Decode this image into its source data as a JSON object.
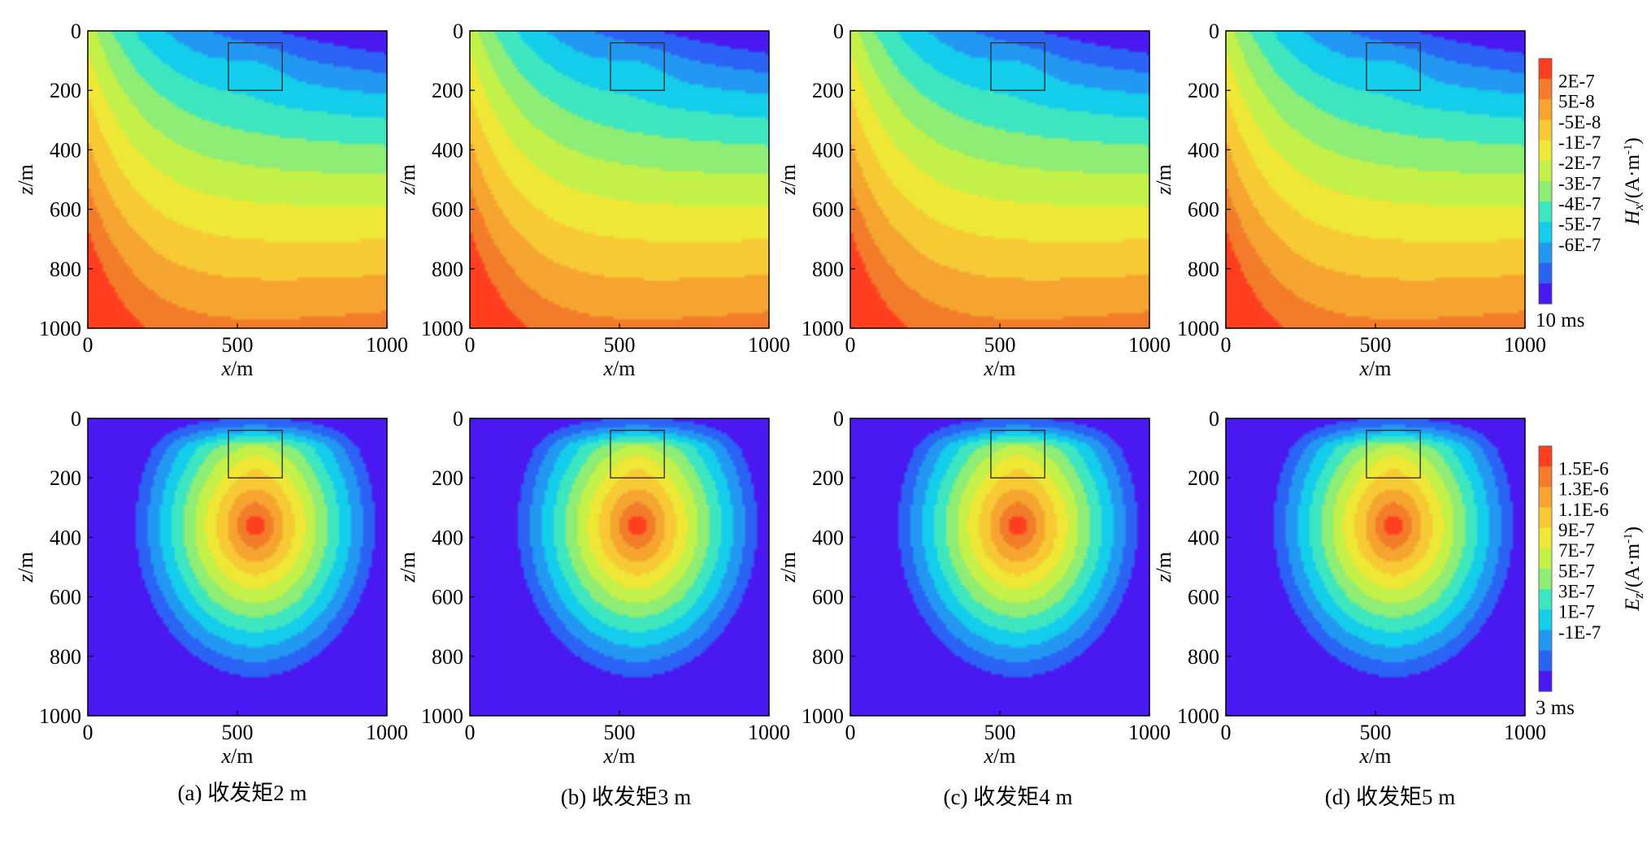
{
  "chart_data": [
    {
      "type": "heatmap",
      "field": "Hx",
      "time_label": "10 ms",
      "colorbar_ticks": [
        "2E-7",
        "5E-8",
        "-5E-8",
        "-1E-7",
        "-2E-7",
        "-3E-7",
        "-4E-7",
        "-5E-7",
        "-6E-7"
      ],
      "colorbar_label_main": "H",
      "colorbar_label_sub": "x",
      "colorbar_label_rest": "/(A·m",
      "colorbar_label_sup": "-1",
      "colorbar_label_close": ")",
      "xlabel_var": "x",
      "xlabel_unit": "/m",
      "ylabel_var": "z",
      "ylabel_unit": "/m",
      "x_ticks": [
        "0",
        "500",
        "1000"
      ],
      "y_ticks": [
        "0",
        "200",
        "400",
        "600",
        "800",
        "1000"
      ],
      "xlim": [
        0,
        1000
      ],
      "ylim": [
        0,
        1000
      ],
      "panels": [
        "a",
        "b",
        "c",
        "d"
      ],
      "anomaly_box": {
        "x": [
          470,
          650
        ],
        "z": [
          40,
          200
        ]
      }
    },
    {
      "type": "heatmap",
      "field": "Ez",
      "time_label": "3 ms",
      "colorbar_ticks": [
        "1.5E-6",
        "1.3E-6",
        "1.1E-6",
        "9E-7",
        "7E-7",
        "5E-7",
        "3E-7",
        "1E-7",
        "-1E-7"
      ],
      "colorbar_label_main": "E",
      "colorbar_label_sub": "z",
      "colorbar_label_rest": "/(A·m",
      "colorbar_label_sup": "-1",
      "colorbar_label_close": ")",
      "xlabel_var": "x",
      "xlabel_unit": "/m",
      "ylabel_var": "z",
      "ylabel_unit": "/m",
      "x_ticks": [
        "0",
        "500",
        "1000"
      ],
      "y_ticks": [
        "0",
        "200",
        "400",
        "600",
        "800",
        "1000"
      ],
      "xlim": [
        0,
        1000
      ],
      "ylim": [
        0,
        1000
      ],
      "panels": [
        "a",
        "b",
        "c",
        "d"
      ],
      "anomaly_box": {
        "x": [
          470,
          650
        ],
        "z": [
          40,
          200
        ]
      }
    }
  ],
  "captions": [
    "(a) 收发矩2 m",
    "(b) 收发矩3 m",
    "(c) 收发矩4 m",
    "(d) 收发矩5 m"
  ],
  "colors": [
    "#4a18f0",
    "#2b63f4",
    "#2398f2",
    "#14cdeb",
    "#3ee6c0",
    "#8ded74",
    "#c4f04a",
    "#eee736",
    "#f7c934",
    "#f5a52f",
    "#f27c2a",
    "#ff3f1f"
  ]
}
